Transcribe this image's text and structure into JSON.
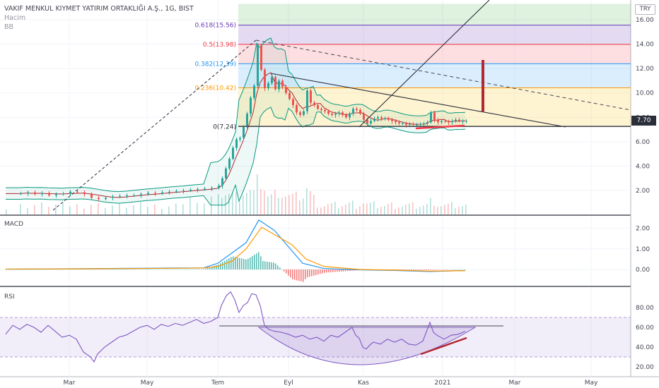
{
  "header": {
    "symbol_line": "VAKIF MENKUL KIYMET YATIRIM ORTAKLIĞI A.Ş., 1G, BIST",
    "volume_label": "Hacim",
    "bb_label": "BB"
  },
  "currency_button": "TRY",
  "last_price_label": "7.70",
  "colors": {
    "up": "#26a69a",
    "down": "#ef5350",
    "macd": "#2196f3",
    "signal": "#ff9800",
    "rsi": "#7e57c2",
    "bb": "#089981",
    "fib_upper": "#4caf50",
    "accent": "#2a2e39"
  },
  "chart_data": [
    {
      "type": "candlestick",
      "panel": "price",
      "y_ticks": [
        "2.00",
        "4.00",
        "6.00",
        "8.00",
        "10.00",
        "12.00",
        "14.00",
        "16.00"
      ],
      "ylim": [
        0.9,
        17.0
      ],
      "x_ticks": [
        "Mar",
        "May",
        "Tem",
        "Eyl",
        "Kas",
        "2021",
        "Mar",
        "May"
      ],
      "last_price": 7.7,
      "fibonacci": [
        {
          "label": "0(7.24)",
          "value": 7.24,
          "color": "#2a2e39"
        },
        {
          "label": "0.236(10.42)",
          "value": 10.42,
          "color": "#ff9800"
        },
        {
          "label": "0.382(12.39)",
          "value": 12.39,
          "color": "#2196f3"
        },
        {
          "label": "0.5(13.98)",
          "value": 13.98,
          "color": "#f23645"
        },
        {
          "label": "0.618(15.56)",
          "value": 15.56,
          "color": "#673ab7"
        }
      ],
      "price_path": [
        [
          0,
          1.75
        ],
        [
          20,
          1.75
        ],
        [
          30,
          1.85
        ],
        [
          40,
          1.7
        ],
        [
          50,
          1.8
        ],
        [
          60,
          1.6
        ],
        [
          70,
          1.7
        ],
        [
          80,
          1.75
        ],
        [
          90,
          1.9
        ],
        [
          100,
          1.85
        ],
        [
          110,
          1.7
        ],
        [
          120,
          1.4
        ],
        [
          130,
          1.3
        ],
        [
          140,
          1.4
        ],
        [
          150,
          1.5
        ],
        [
          160,
          1.55
        ],
        [
          170,
          1.6
        ],
        [
          180,
          1.6
        ],
        [
          190,
          1.7
        ],
        [
          200,
          1.8
        ],
        [
          210,
          1.75
        ],
        [
          220,
          1.85
        ],
        [
          230,
          1.9
        ],
        [
          240,
          1.95
        ],
        [
          250,
          2.0
        ],
        [
          260,
          2.05
        ],
        [
          270,
          2.1
        ],
        [
          280,
          2.15
        ],
        [
          290,
          2.2
        ],
        [
          300,
          2.4
        ],
        [
          305,
          3.0
        ],
        [
          310,
          3.8
        ],
        [
          315,
          4.6
        ],
        [
          320,
          5.5
        ],
        [
          325,
          6.2
        ],
        [
          330,
          6.3
        ],
        [
          335,
          7.2
        ],
        [
          340,
          8.3
        ],
        [
          345,
          9.6
        ],
        [
          350,
          10.6
        ],
        [
          355,
          13.9
        ],
        [
          360,
          11.9
        ],
        [
          365,
          10.4
        ],
        [
          370,
          10.8
        ],
        [
          375,
          11.3
        ],
        [
          380,
          10.3
        ],
        [
          385,
          11.0
        ],
        [
          390,
          10.5
        ],
        [
          395,
          10.0
        ],
        [
          400,
          9.5
        ],
        [
          405,
          9.0
        ],
        [
          410,
          8.4
        ],
        [
          415,
          8.2
        ],
        [
          420,
          8.5
        ],
        [
          425,
          10.2
        ],
        [
          430,
          9.2
        ],
        [
          435,
          9.0
        ],
        [
          440,
          8.7
        ],
        [
          445,
          8.6
        ],
        [
          450,
          8.5
        ],
        [
          455,
          8.3
        ],
        [
          460,
          8.2
        ],
        [
          465,
          8.3
        ],
        [
          470,
          8.4
        ],
        [
          475,
          8.2
        ],
        [
          480,
          8.0
        ],
        [
          485,
          8.3
        ],
        [
          490,
          8.7
        ],
        [
          495,
          8.6
        ],
        [
          500,
          8.3
        ],
        [
          505,
          7.8
        ],
        [
          510,
          7.5
        ],
        [
          515,
          7.7
        ],
        [
          520,
          7.9
        ],
        [
          525,
          8.0
        ],
        [
          530,
          7.9
        ],
        [
          535,
          7.9
        ],
        [
          540,
          7.8
        ],
        [
          545,
          7.7
        ],
        [
          550,
          7.6
        ],
        [
          555,
          7.5
        ],
        [
          560,
          7.5
        ],
        [
          565,
          7.4
        ],
        [
          570,
          7.45
        ],
        [
          575,
          7.4
        ],
        [
          580,
          7.4
        ],
        [
          585,
          7.45
        ],
        [
          590,
          7.5
        ],
        [
          595,
          7.6
        ],
        [
          600,
          8.4
        ],
        [
          605,
          7.8
        ],
        [
          610,
          7.6
        ],
        [
          615,
          7.7
        ],
        [
          620,
          7.65
        ],
        [
          625,
          7.6
        ],
        [
          630,
          7.7
        ],
        [
          635,
          7.8
        ],
        [
          640,
          7.7
        ],
        [
          645,
          7.7
        ],
        [
          650,
          7.7
        ]
      ]
    },
    {
      "type": "line",
      "panel": "macd",
      "title": "MACD",
      "y_ticks": [
        "0.00",
        "1.00",
        "2.00"
      ],
      "ylim": [
        -0.5,
        2.5
      ],
      "series": [
        {
          "values": [
            [
              0,
              0.02
            ],
            [
              100,
              0.04
            ],
            [
              200,
              0.06
            ],
            [
              280,
              0.08
            ],
            [
              300,
              0.3
            ],
            [
              320,
              0.8
            ],
            [
              340,
              1.3
            ],
            [
              358,
              2.4
            ],
            [
              380,
              1.9
            ],
            [
              400,
              1.1
            ],
            [
              420,
              0.3
            ],
            [
              450,
              0.05
            ],
            [
              500,
              -0.02
            ],
            [
              550,
              -0.05
            ],
            [
              600,
              -0.1
            ],
            [
              650,
              -0.05
            ]
          ]
        },
        {
          "values": [
            [
              0,
              0.02
            ],
            [
              100,
              0.03
            ],
            [
              200,
              0.05
            ],
            [
              280,
              0.07
            ],
            [
              300,
              0.15
            ],
            [
              320,
              0.4
            ],
            [
              340,
              1.0
            ],
            [
              362,
              2.05
            ],
            [
              385,
              1.6
            ],
            [
              405,
              1.2
            ],
            [
              425,
              0.5
            ],
            [
              450,
              0.15
            ],
            [
              500,
              0.0
            ],
            [
              550,
              -0.03
            ],
            [
              600,
              -0.08
            ],
            [
              650,
              -0.06
            ]
          ]
        }
      ]
    },
    {
      "type": "line",
      "panel": "rsi",
      "title": "RSI",
      "y_ticks": [
        "20.00",
        "40.00",
        "60.00",
        "80.00"
      ],
      "ylim": [
        15,
        90
      ],
      "bands": [
        30,
        70
      ],
      "series": [
        {
          "values": [
            [
              0,
              53
            ],
            [
              10,
              62
            ],
            [
              20,
              58
            ],
            [
              30,
              63
            ],
            [
              40,
              60
            ],
            [
              50,
              55
            ],
            [
              60,
              62
            ],
            [
              70,
              56
            ],
            [
              80,
              50
            ],
            [
              90,
              52
            ],
            [
              100,
              48
            ],
            [
              110,
              35
            ],
            [
              120,
              30
            ],
            [
              125,
              25
            ],
            [
              130,
              33
            ],
            [
              140,
              40
            ],
            [
              150,
              45
            ],
            [
              160,
              50
            ],
            [
              170,
              52
            ],
            [
              180,
              56
            ],
            [
              190,
              60
            ],
            [
              200,
              62
            ],
            [
              210,
              58
            ],
            [
              220,
              63
            ],
            [
              230,
              61
            ],
            [
              240,
              64
            ],
            [
              250,
              62
            ],
            [
              260,
              65
            ],
            [
              270,
              68
            ],
            [
              280,
              64
            ],
            [
              290,
              66
            ],
            [
              300,
              70
            ],
            [
              305,
              82
            ],
            [
              312,
              92
            ],
            [
              318,
              96
            ],
            [
              324,
              88
            ],
            [
              330,
              75
            ],
            [
              336,
              82
            ],
            [
              342,
              85
            ],
            [
              348,
              94
            ],
            [
              354,
              93
            ],
            [
              360,
              82
            ],
            [
              366,
              62
            ],
            [
              372,
              58
            ],
            [
              380,
              56
            ],
            [
              390,
              55
            ],
            [
              400,
              53
            ],
            [
              410,
              50
            ],
            [
              420,
              52
            ],
            [
              430,
              48
            ],
            [
              440,
              50
            ],
            [
              450,
              46
            ],
            [
              460,
              52
            ],
            [
              470,
              50
            ],
            [
              480,
              55
            ],
            [
              490,
              60
            ],
            [
              495,
              52
            ],
            [
              500,
              49
            ],
            [
              505,
              40
            ],
            [
              510,
              38
            ],
            [
              515,
              42
            ],
            [
              520,
              45
            ],
            [
              530,
              43
            ],
            [
              540,
              48
            ],
            [
              550,
              45
            ],
            [
              560,
              48
            ],
            [
              570,
              43
            ],
            [
              580,
              42
            ],
            [
              590,
              46
            ],
            [
              600,
              65
            ],
            [
              605,
              55
            ],
            [
              610,
              52
            ],
            [
              620,
              48
            ],
            [
              630,
              52
            ],
            [
              640,
              53
            ],
            [
              650,
              56
            ]
          ]
        }
      ]
    }
  ]
}
